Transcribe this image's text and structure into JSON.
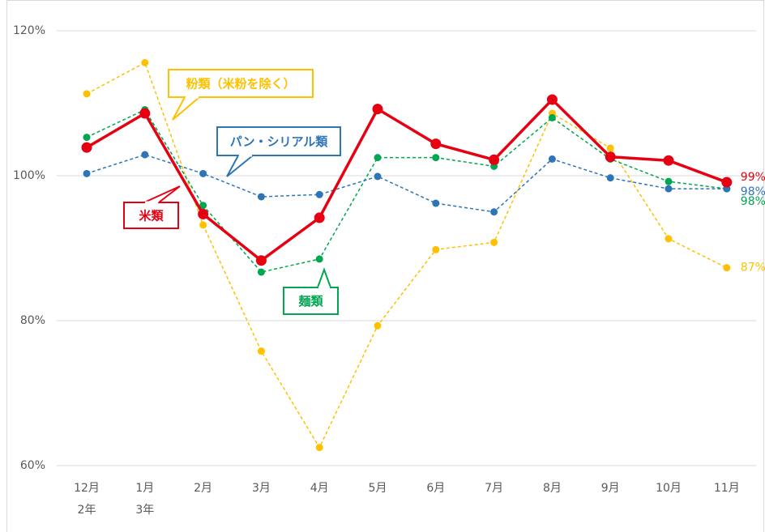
{
  "chart_data": {
    "type": "line",
    "categories": [
      "12月",
      "1月",
      "2月",
      "3月",
      "4月",
      "5月",
      "6月",
      "7月",
      "8月",
      "9月",
      "10月",
      "11月"
    ],
    "year_labels": [
      "2年",
      "3年",
      null,
      null,
      null,
      null,
      null,
      null,
      null,
      null,
      null,
      null
    ],
    "ylim": [
      60,
      120
    ],
    "yticks": [
      {
        "value": 60,
        "label": "60%"
      },
      {
        "value": 80,
        "label": "80%"
      },
      {
        "value": 100,
        "label": "100%"
      },
      {
        "value": 120,
        "label": "120%"
      }
    ],
    "grid": true,
    "series": [
      {
        "name": "米類",
        "color": "#e60012",
        "dashed": false,
        "values": [
          103.9,
          108.6,
          94.7,
          88.3,
          94.2,
          109.2,
          104.4,
          102.2,
          110.5,
          102.6,
          102.1,
          99.1
        ],
        "value_labels": [
          null,
          null,
          null,
          null,
          null,
          null,
          null,
          null,
          null,
          null,
          null,
          "99%"
        ]
      },
      {
        "name": "パン・シリアル類",
        "color": "#2e75b6",
        "dashed": true,
        "values": [
          100.3,
          102.9,
          100.3,
          97.1,
          97.4,
          99.9,
          96.2,
          95.0,
          102.3,
          99.7,
          98.2,
          98.2
        ],
        "value_labels": [
          null,
          null,
          null,
          null,
          null,
          null,
          null,
          null,
          null,
          null,
          null,
          "98%"
        ]
      },
      {
        "name": "麺類",
        "color": "#00a650",
        "dashed": true,
        "values": [
          105.3,
          109.1,
          95.9,
          86.7,
          88.5,
          102.5,
          102.5,
          101.3,
          108.0,
          102.3,
          99.2,
          98.2
        ],
        "value_labels": [
          null,
          null,
          null,
          null,
          null,
          null,
          null,
          null,
          null,
          null,
          null,
          "98%"
        ]
      },
      {
        "name": "粉類（米粉を除く）",
        "color": "#ffc000",
        "dashed": true,
        "values": [
          111.3,
          115.6,
          93.2,
          75.8,
          62.5,
          79.3,
          89.8,
          90.8,
          108.6,
          103.8,
          91.3,
          87.3
        ],
        "value_labels": [
          null,
          null,
          null,
          null,
          null,
          null,
          null,
          null,
          null,
          null,
          null,
          "87%"
        ]
      }
    ]
  }
}
